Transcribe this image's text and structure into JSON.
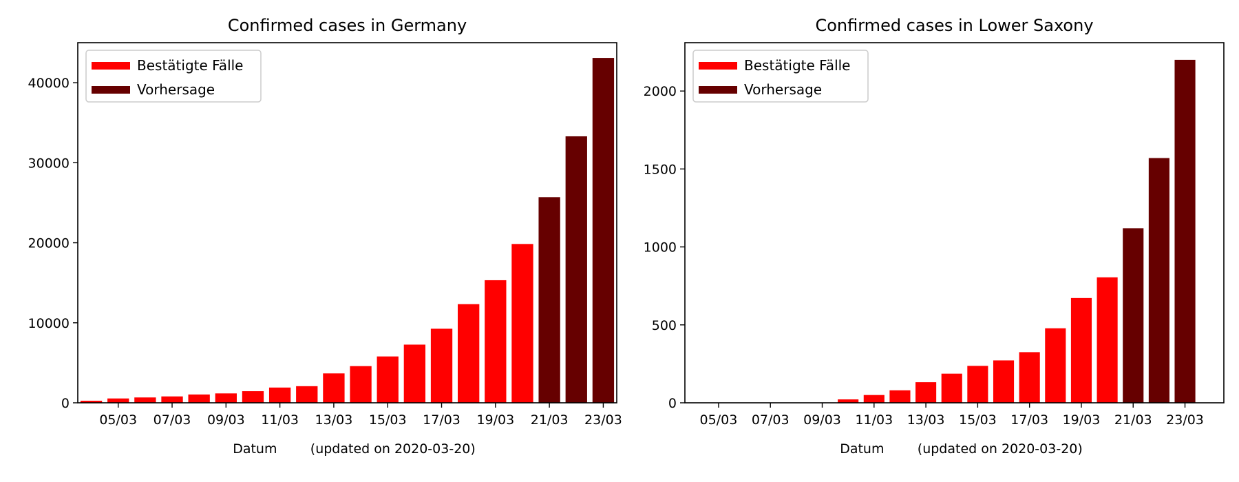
{
  "chart_data": [
    {
      "type": "bar",
      "title": "Confirmed cases in Germany",
      "xlabel": "Datum        (updated on 2020-03-20)",
      "ylabel": "",
      "dates": [
        "04/03",
        "05/03",
        "06/03",
        "07/03",
        "08/03",
        "09/03",
        "10/03",
        "11/03",
        "12/03",
        "13/03",
        "14/03",
        "15/03",
        "16/03",
        "17/03",
        "18/03",
        "19/03",
        "20/03",
        "21/03",
        "22/03",
        "23/03"
      ],
      "xtick_labels": [
        "05/03",
        "07/03",
        "09/03",
        "11/03",
        "13/03",
        "15/03",
        "17/03",
        "19/03",
        "21/03",
        "23/03"
      ],
      "series": [
        {
          "name": "Bestätigte Fälle",
          "color": "#ff0000",
          "values": [
            262,
            545,
            670,
            800,
            1040,
            1176,
            1457,
            1908,
            2078,
            3675,
            4585,
            5795,
            7272,
            9257,
            12327,
            15320,
            19848,
            null,
            null,
            null
          ]
        },
        {
          "name": "Vorhersage",
          "color": "#660000",
          "values": [
            null,
            null,
            null,
            null,
            null,
            null,
            null,
            null,
            null,
            null,
            null,
            null,
            null,
            null,
            null,
            null,
            null,
            25700,
            33300,
            43100
          ]
        }
      ],
      "ylim": [
        0,
        45000
      ],
      "yticks": [
        0,
        10000,
        20000,
        30000,
        40000
      ],
      "legend_position": "top-left"
    },
    {
      "type": "bar",
      "title": "Confirmed cases in Lower Saxony",
      "xlabel": "Datum        (updated on 2020-03-20)",
      "ylabel": "",
      "dates": [
        "05/03",
        "06/03",
        "07/03",
        "08/03",
        "09/03",
        "10/03",
        "11/03",
        "12/03",
        "13/03",
        "14/03",
        "15/03",
        "16/03",
        "17/03",
        "18/03",
        "19/03",
        "20/03",
        "21/03",
        "22/03",
        "23/03"
      ],
      "xtick_labels": [
        "05/03",
        "07/03",
        "09/03",
        "11/03",
        "13/03",
        "15/03",
        "17/03",
        "19/03",
        "21/03",
        "23/03"
      ],
      "series": [
        {
          "name": "Bestätigte Fälle",
          "color": "#ff0000",
          "values": [
            0,
            0,
            0,
            0,
            0,
            22,
            50,
            80,
            132,
            187,
            237,
            272,
            325,
            478,
            672,
            805,
            null,
            null,
            null
          ]
        },
        {
          "name": "Vorhersage",
          "color": "#660000",
          "values": [
            null,
            null,
            null,
            null,
            null,
            null,
            null,
            null,
            null,
            null,
            null,
            null,
            null,
            null,
            null,
            null,
            1120,
            1570,
            2200
          ]
        }
      ],
      "ylim": [
        0,
        2310
      ],
      "yticks": [
        0,
        500,
        1000,
        1500,
        2000
      ],
      "legend_position": "top-left"
    }
  ]
}
